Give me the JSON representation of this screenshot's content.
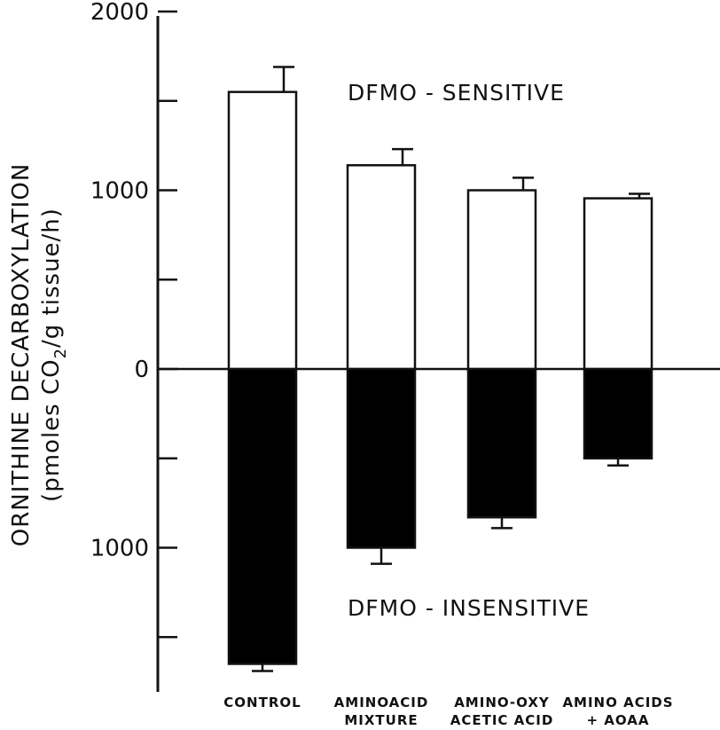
{
  "chart_data": {
    "type": "bar",
    "title": "",
    "xlabel": "",
    "ylabel": {
      "line1": "ORNITHINE DECARBOXYLATION",
      "line2_prefix": "(pmoles CO",
      "line2_sub": "2",
      "line2_suffix": "/g tissue/h)"
    },
    "categories": [
      [
        "CONTROL"
      ],
      [
        "AMINOACID",
        "MIXTURE"
      ],
      [
        "AMINO-OXY",
        "ACETIC ACID"
      ],
      [
        "AMINO ACIDS",
        "+ AOAA"
      ]
    ],
    "series": [
      {
        "name": "DFMO - SENSITIVE",
        "direction": "up",
        "color": "#ffffff",
        "values": [
          1550,
          1140,
          1000,
          955
        ],
        "errors": [
          140,
          90,
          70,
          25
        ]
      },
      {
        "name": "DFMO - INSENSITIVE",
        "direction": "down",
        "color": "#000000",
        "values": [
          1650,
          1000,
          830,
          500
        ],
        "errors": [
          40,
          90,
          60,
          40
        ]
      }
    ],
    "ylim": [
      -1750,
      2000
    ],
    "yticks": [
      {
        "value": 2000,
        "label": "2000"
      },
      {
        "value": 1500,
        "label": ""
      },
      {
        "value": 1000,
        "label": "1000"
      },
      {
        "value": 500,
        "label": ""
      },
      {
        "value": 0,
        "label": "0"
      },
      {
        "value": -500,
        "label": ""
      },
      {
        "value": -1000,
        "label": "1000"
      },
      {
        "value": -1500,
        "label": ""
      }
    ],
    "grid": false,
    "legend": "none"
  }
}
